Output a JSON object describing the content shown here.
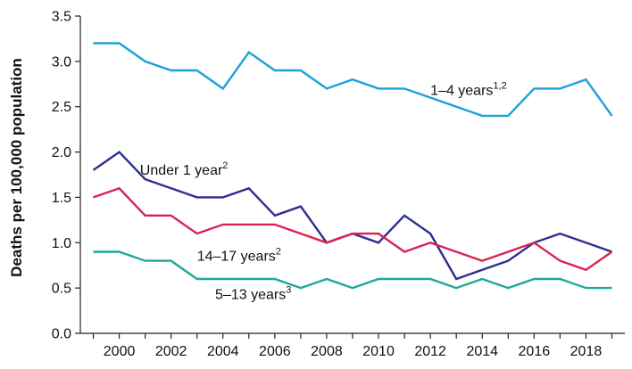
{
  "chart_data": {
    "type": "line",
    "title": "",
    "xlabel": "",
    "ylabel": "Deaths per 100,000 population",
    "xlim": [
      1998.5,
      2019.5
    ],
    "ylim": [
      0,
      3.5
    ],
    "x": [
      1999,
      2000,
      2001,
      2002,
      2003,
      2004,
      2005,
      2006,
      2007,
      2008,
      2009,
      2010,
      2011,
      2012,
      2013,
      2014,
      2015,
      2016,
      2017,
      2018,
      2019
    ],
    "x_ticks": [
      "2000",
      "2002",
      "2004",
      "2006",
      "2008",
      "2010",
      "2012",
      "2014",
      "2016",
      "2018"
    ],
    "y_ticks": [
      "0.0",
      "0.5",
      "1.0",
      "1.5",
      "2.0",
      "2.5",
      "3.0",
      "3.5"
    ],
    "grid": false,
    "legend": "inline labels",
    "series": [
      {
        "name": "1–4 years",
        "sup": "1,2",
        "color": "#1ea1d8",
        "values": [
          3.2,
          3.2,
          3.0,
          2.9,
          2.9,
          2.7,
          3.1,
          2.9,
          2.9,
          2.7,
          2.8,
          2.7,
          2.7,
          2.6,
          2.5,
          2.4,
          2.4,
          2.7,
          2.7,
          2.8,
          2.4
        ]
      },
      {
        "name": "Under 1 year",
        "sup": "2",
        "color": "#2e2f8f",
        "values": [
          1.8,
          2.0,
          1.7,
          1.6,
          1.5,
          1.5,
          1.6,
          1.3,
          1.4,
          1.0,
          1.1,
          1.0,
          1.3,
          1.1,
          0.6,
          0.7,
          0.8,
          1.0,
          1.1,
          1.0,
          0.9
        ]
      },
      {
        "name": "14–17 years",
        "sup": "2",
        "color": "#d9234f",
        "values": [
          1.5,
          1.6,
          1.3,
          1.3,
          1.1,
          1.2,
          1.2,
          1.2,
          1.1,
          1.0,
          1.1,
          1.1,
          0.9,
          1.0,
          0.9,
          0.8,
          0.9,
          1.0,
          0.8,
          0.7,
          0.9
        ]
      },
      {
        "name": "5–13 years",
        "sup": "3",
        "color": "#1fa79b",
        "values": [
          0.9,
          0.9,
          0.8,
          0.8,
          0.6,
          0.6,
          0.6,
          0.6,
          0.5,
          0.6,
          0.5,
          0.6,
          0.6,
          0.6,
          0.5,
          0.6,
          0.5,
          0.6,
          0.6,
          0.5,
          0.5
        ]
      }
    ]
  }
}
